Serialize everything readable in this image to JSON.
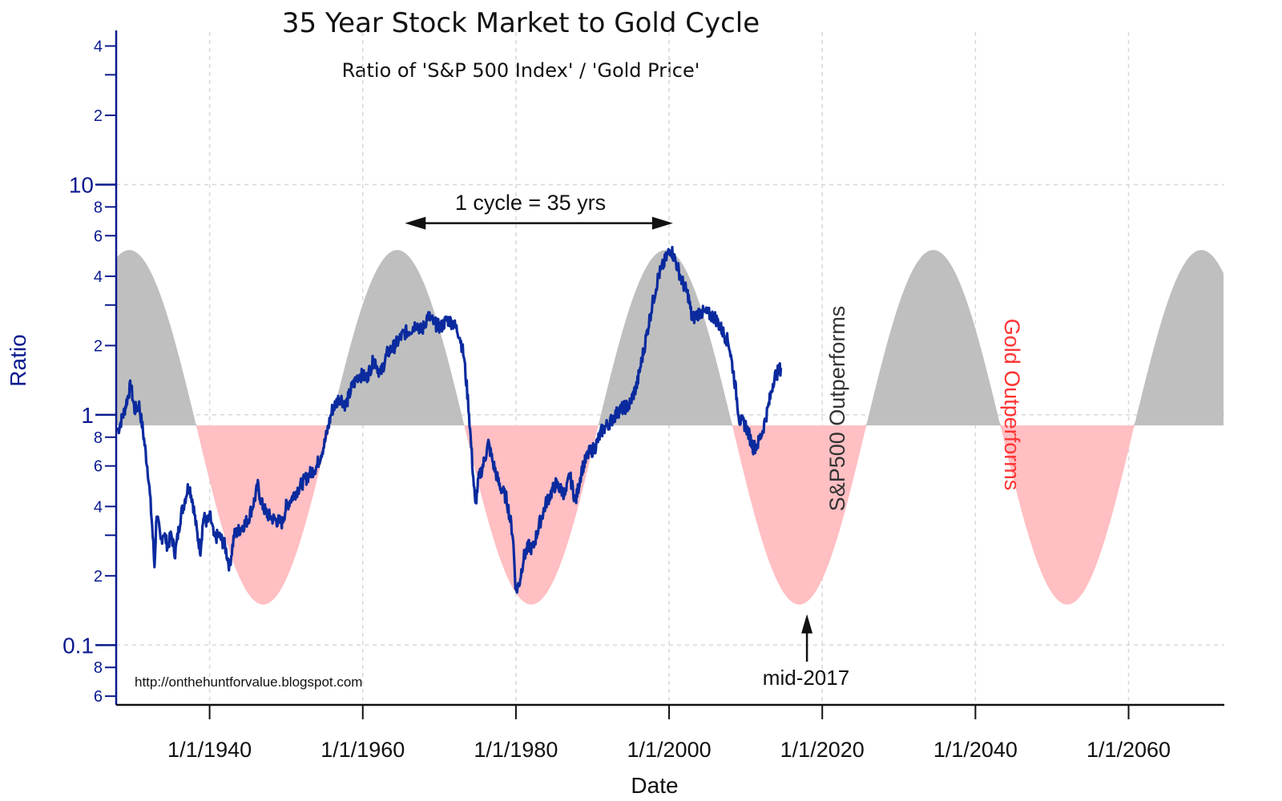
{
  "chart_data": {
    "type": "line",
    "title": "35 Year Stock Market to Gold Cycle",
    "subtitle": "Ratio of 'S&P 500 Index' / 'Gold Price'",
    "xlabel": "Date",
    "ylabel": "Ratio",
    "y_scale": "log",
    "ylim": [
      0.055,
      46
    ],
    "xlim": [
      1927.8,
      2072.5
    ],
    "x_ticks": [
      1940,
      1960,
      1980,
      2000,
      2020,
      2040,
      2060
    ],
    "x_tick_labels": [
      "1/1/1940",
      "1/1/1960",
      "1/1/1980",
      "1/1/2000",
      "1/1/2020",
      "1/1/2040",
      "1/1/2060"
    ],
    "y_major_ticks": [
      {
        "value": 10,
        "label": "10"
      },
      {
        "value": 1,
        "label": "1"
      },
      {
        "value": 0.1,
        "label": "0.1"
      }
    ],
    "y_minor_ticks": [
      {
        "value": 40,
        "label": "4"
      },
      {
        "value": 20,
        "label": "2"
      },
      {
        "value": 8,
        "label": "8"
      },
      {
        "value": 6,
        "label": "6"
      },
      {
        "value": 4,
        "label": "4"
      },
      {
        "value": 2,
        "label": "2"
      },
      {
        "value": 0.8,
        "label": "8"
      },
      {
        "value": 0.6,
        "label": "6"
      },
      {
        "value": 0.4,
        "label": "4"
      },
      {
        "value": 0.2,
        "label": "2"
      },
      {
        "value": 0.08,
        "label": "8"
      },
      {
        "value": 0.06,
        "label": "6"
      }
    ],
    "y_unlabeled_ticks": [
      30,
      3,
      0.3
    ],
    "grid": true,
    "cycle": {
      "period_years": 35,
      "peak_years": [
        1929.5,
        1965.5,
        2000.5,
        2035.5,
        2071.5
      ],
      "trough_years": [
        1947.5,
        1982.5,
        2017.5,
        2053.5
      ],
      "baseline": 0.9,
      "peak_value": 5.2,
      "trough_value": 0.15,
      "above_color": "#bfbfbf",
      "below_color": "#ffbfc3"
    },
    "series": [
      {
        "color": "#0a2a9e",
        "points": [
          [
            1928.0,
            0.85
          ],
          [
            1928.8,
            1.02
          ],
          [
            1929.7,
            1.35
          ],
          [
            1930.2,
            1.05
          ],
          [
            1930.8,
            1.1
          ],
          [
            1931.3,
            0.85
          ],
          [
            1932.0,
            0.55
          ],
          [
            1932.5,
            0.33
          ],
          [
            1932.8,
            0.22
          ],
          [
            1933.1,
            0.38
          ],
          [
            1933.6,
            0.28
          ],
          [
            1934.0,
            0.31
          ],
          [
            1934.5,
            0.27
          ],
          [
            1935.0,
            0.3
          ],
          [
            1935.5,
            0.25
          ],
          [
            1936.2,
            0.36
          ],
          [
            1937.0,
            0.46
          ],
          [
            1937.3,
            0.5
          ],
          [
            1937.8,
            0.42
          ],
          [
            1938.4,
            0.3
          ],
          [
            1938.8,
            0.26
          ],
          [
            1939.2,
            0.36
          ],
          [
            1939.7,
            0.34
          ],
          [
            1940.1,
            0.36
          ],
          [
            1940.6,
            0.29
          ],
          [
            1941.2,
            0.3
          ],
          [
            1942.0,
            0.27
          ],
          [
            1942.6,
            0.22
          ],
          [
            1943.2,
            0.3
          ],
          [
            1944.0,
            0.32
          ],
          [
            1945.0,
            0.35
          ],
          [
            1945.8,
            0.42
          ],
          [
            1946.3,
            0.49
          ],
          [
            1946.8,
            0.41
          ],
          [
            1947.5,
            0.37
          ],
          [
            1948.5,
            0.35
          ],
          [
            1949.5,
            0.34
          ],
          [
            1950.0,
            0.4
          ],
          [
            1951.0,
            0.45
          ],
          [
            1952.0,
            0.5
          ],
          [
            1953.0,
            0.55
          ],
          [
            1954.0,
            0.6
          ],
          [
            1955.0,
            0.75
          ],
          [
            1956.0,
            1.05
          ],
          [
            1957.0,
            1.2
          ],
          [
            1957.8,
            1.1
          ],
          [
            1958.5,
            1.3
          ],
          [
            1959.5,
            1.5
          ],
          [
            1960.5,
            1.45
          ],
          [
            1961.5,
            1.75
          ],
          [
            1962.3,
            1.5
          ],
          [
            1963.2,
            1.85
          ],
          [
            1964.2,
            2.0
          ],
          [
            1965.3,
            2.25
          ],
          [
            1966.3,
            2.35
          ],
          [
            1967.0,
            2.5
          ],
          [
            1967.7,
            2.3
          ],
          [
            1968.5,
            2.7
          ],
          [
            1969.3,
            2.5
          ],
          [
            1970.2,
            2.4
          ],
          [
            1971.0,
            2.6
          ],
          [
            1971.8,
            2.5
          ],
          [
            1972.6,
            2.25
          ],
          [
            1973.2,
            1.8
          ],
          [
            1973.8,
            1.1
          ],
          [
            1974.3,
            0.62
          ],
          [
            1974.7,
            0.4
          ],
          [
            1975.1,
            0.52
          ],
          [
            1975.8,
            0.62
          ],
          [
            1976.4,
            0.75
          ],
          [
            1977.0,
            0.62
          ],
          [
            1977.8,
            0.5
          ],
          [
            1978.8,
            0.43
          ],
          [
            1979.6,
            0.3
          ],
          [
            1980.0,
            0.17
          ],
          [
            1980.5,
            0.19
          ],
          [
            1981.0,
            0.24
          ],
          [
            1981.7,
            0.27
          ],
          [
            1982.2,
            0.26
          ],
          [
            1983.0,
            0.33
          ],
          [
            1984.0,
            0.42
          ],
          [
            1985.2,
            0.5
          ],
          [
            1986.5,
            0.45
          ],
          [
            1987.0,
            0.55
          ],
          [
            1987.8,
            0.42
          ],
          [
            1988.6,
            0.58
          ],
          [
            1989.5,
            0.68
          ],
          [
            1990.3,
            0.72
          ],
          [
            1991.2,
            0.85
          ],
          [
            1992.5,
            0.95
          ],
          [
            1993.5,
            1.05
          ],
          [
            1994.8,
            1.1
          ],
          [
            1995.8,
            1.35
          ],
          [
            1996.8,
            2.0
          ],
          [
            1997.8,
            3.0
          ],
          [
            1998.6,
            4.0
          ],
          [
            1999.5,
            4.7
          ],
          [
            2000.2,
            5.3
          ],
          [
            2000.9,
            4.6
          ],
          [
            2001.7,
            3.8
          ],
          [
            2002.5,
            3.3
          ],
          [
            2003.0,
            2.6
          ],
          [
            2004.0,
            2.8
          ],
          [
            2005.0,
            2.75
          ],
          [
            2006.0,
            2.65
          ],
          [
            2007.0,
            2.3
          ],
          [
            2007.8,
            2.05
          ],
          [
            2008.5,
            1.45
          ],
          [
            2009.2,
            0.95
          ],
          [
            2010.0,
            0.9
          ],
          [
            2011.0,
            0.72
          ],
          [
            2011.6,
            0.75
          ],
          [
            2012.2,
            0.85
          ],
          [
            2013.0,
            1.1
          ],
          [
            2013.7,
            1.45
          ],
          [
            2014.6,
            1.6
          ]
        ]
      }
    ],
    "annotations": [
      {
        "text": "1 cycle = 35 yrs",
        "kind": "double-arrow",
        "x_from": 1965.5,
        "x_to": 2000.5,
        "y": 6.8
      },
      {
        "text": "S&P500 Outperforms",
        "color": "#333333",
        "rotation": -90
      },
      {
        "text": "Gold Outperforms",
        "color": "#ff3333",
        "rotation": 90
      },
      {
        "text": "mid-2017",
        "kind": "up-arrow",
        "x": 2018.0
      },
      {
        "text": "http://onthehuntforvalue.blogspot.com"
      }
    ],
    "colors": {
      "axis": "#0a1a8e",
      "line": "#0a2a9e",
      "grid": "#d8d8d8"
    }
  }
}
